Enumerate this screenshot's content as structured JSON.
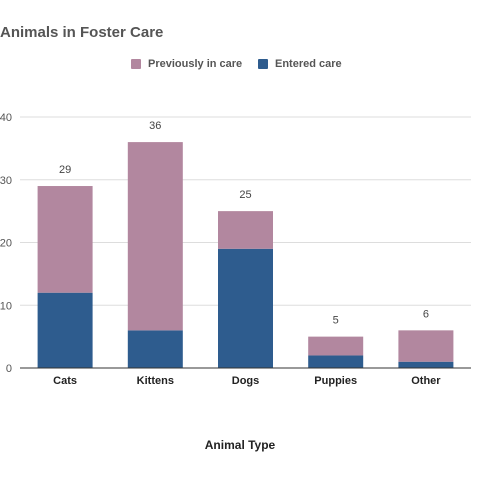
{
  "chart_data": {
    "type": "bar",
    "stacked": true,
    "title": "Animals in Foster Care",
    "xlabel": "Animal Type",
    "ylabel": "",
    "categories": [
      "Cats",
      "Kittens",
      "Dogs",
      "Puppies",
      "Other"
    ],
    "series": [
      {
        "name": "Entered care",
        "values": [
          12,
          6,
          19,
          2,
          1
        ],
        "color": "#2e5c8e"
      },
      {
        "name": "Previously in care",
        "values": [
          17,
          30,
          6,
          3,
          5
        ],
        "color": "#b2879f"
      }
    ],
    "totals": [
      29,
      36,
      25,
      5,
      6
    ],
    "ylim": [
      0,
      40
    ],
    "yticks": [
      0,
      10,
      20,
      30,
      40
    ],
    "grid": true,
    "legend_position": "top",
    "legend_order": [
      "Previously in care",
      "Entered care"
    ]
  }
}
